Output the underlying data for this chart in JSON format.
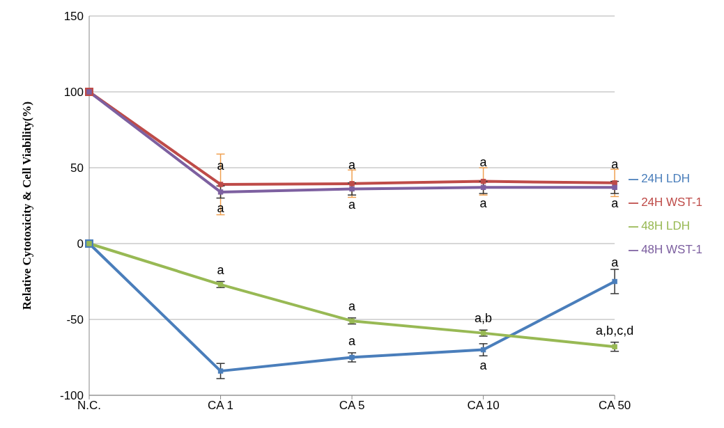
{
  "chart_data": {
    "type": "line",
    "ylabel": "Relative Cytotoxicity & Cell Viability(%)",
    "categories": [
      "N.C.",
      "CA 1",
      "CA 5",
      "CA 10",
      "CA 50"
    ],
    "series": [
      {
        "name": "24H LDH",
        "color": "#4a7ebb",
        "values": [
          0,
          -84,
          -75,
          -70,
          -25
        ],
        "errors": [
          null,
          5,
          3,
          4,
          8
        ]
      },
      {
        "name": "24H WST-1",
        "color": "#be4b48",
        "values": [
          100,
          39,
          39.5,
          41,
          40
        ],
        "errors": [
          null,
          20,
          9,
          9,
          9
        ]
      },
      {
        "name": "48H LDH",
        "color": "#98b954",
        "values": [
          0,
          -27,
          -51,
          -59,
          -68
        ],
        "errors": [
          null,
          2,
          2,
          2,
          3
        ]
      },
      {
        "name": "48H WST-1",
        "color": "#7d60a0",
        "values": [
          100,
          34,
          36,
          37,
          37
        ],
        "errors": [
          null,
          4,
          4,
          4,
          4
        ]
      }
    ],
    "ylim": [
      -100,
      150
    ],
    "yticks": [
      -100,
      -50,
      0,
      50,
      100,
      150
    ],
    "grid": "y",
    "legend": "right",
    "marker": "square",
    "line_style": "solid",
    "annotations": [
      {
        "text": "a",
        "x": "CA 1",
        "y": 39
      },
      {
        "text": "a",
        "x": "CA 1",
        "y": 34
      },
      {
        "text": "a",
        "x": "CA 5",
        "y": 39.5
      },
      {
        "text": "a",
        "x": "CA 5",
        "y": 36
      },
      {
        "text": "a",
        "x": "CA 10",
        "y": 41
      },
      {
        "text": "a",
        "x": "CA 10",
        "y": 37
      },
      {
        "text": "a",
        "x": "CA 50",
        "y": 40
      },
      {
        "text": "a",
        "x": "CA 50",
        "y": 37
      },
      {
        "text": "a",
        "x": "CA 1",
        "y": -27
      },
      {
        "text": "a",
        "x": "CA 5",
        "y": -51
      },
      {
        "text": "a",
        "x": "CA 5",
        "y": -75
      },
      {
        "text": "a,b",
        "x": "CA 10",
        "y": -59
      },
      {
        "text": "a",
        "x": "CA 10",
        "y": -70
      },
      {
        "text": "a",
        "x": "CA 50",
        "y": -25
      },
      {
        "text": "a,b,c,d",
        "x": "CA 50",
        "y": -68
      }
    ]
  }
}
